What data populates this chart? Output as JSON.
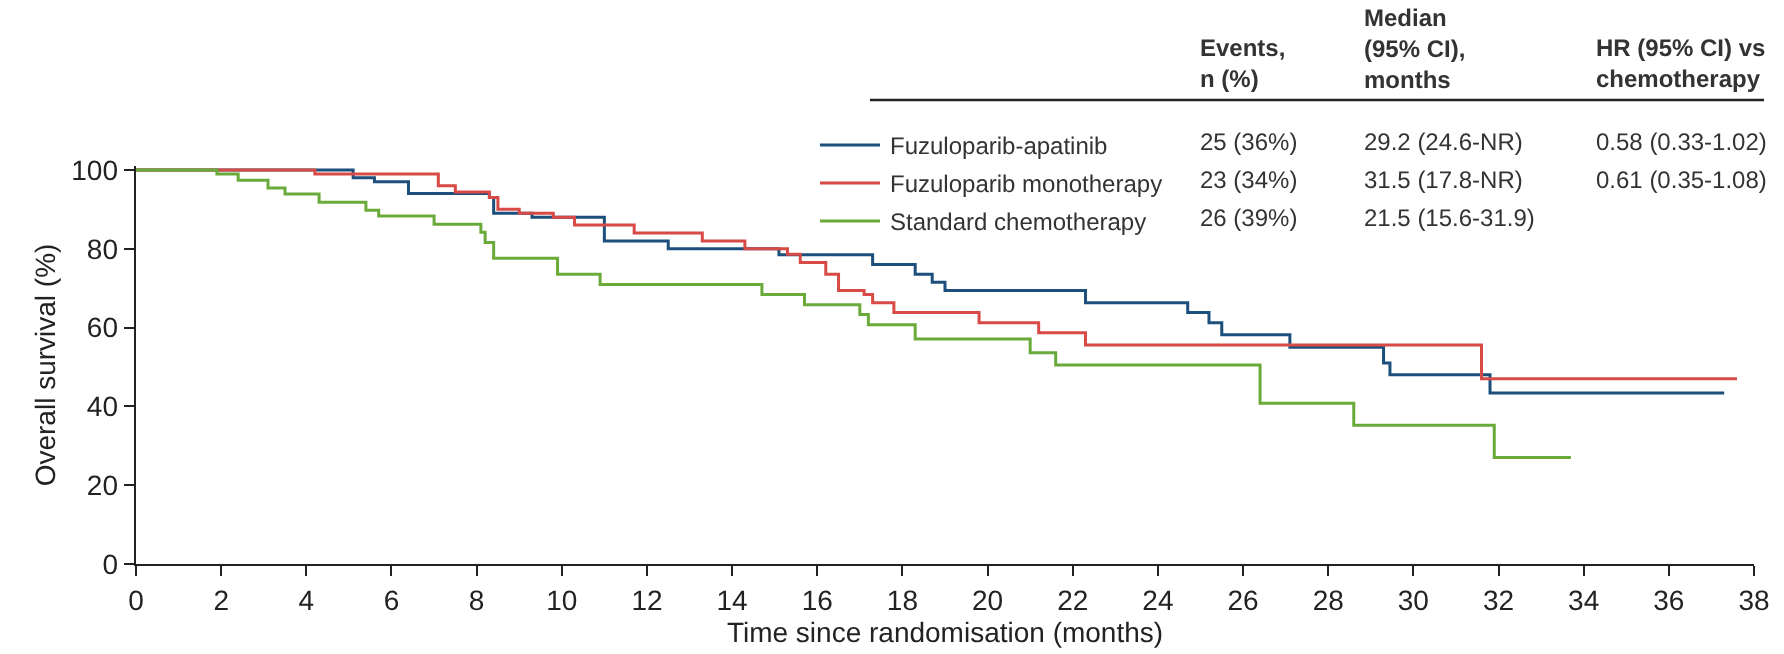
{
  "chart_data": {
    "type": "step",
    "xlabel": "Time since randomisation (months)",
    "ylabel": "Overall survival (%)",
    "xlim": [
      0,
      38
    ],
    "xticks": [
      0,
      2,
      4,
      6,
      8,
      10,
      12,
      14,
      16,
      18,
      20,
      22,
      24,
      26,
      28,
      30,
      32,
      34,
      36,
      38
    ],
    "ylim": [
      0,
      101
    ],
    "yticks": [
      0,
      20,
      40,
      60,
      80,
      100
    ],
    "grid": false,
    "legend": "top right",
    "marker": "none",
    "line_style": "solid",
    "series": [
      {
        "name": "Fuzuloparib-apatinib",
        "color": "#1d4f7c",
        "x": [
          0,
          5.1,
          5.6,
          6.4,
          8.3,
          8.4,
          9.3,
          11.0,
          12.5,
          15.1,
          17.3,
          18.3,
          18.7,
          19.0,
          22.3,
          24.7,
          25.2,
          25.5,
          27.1,
          29.3,
          29.45,
          31.8,
          37.3
        ],
        "values": [
          100,
          98,
          97,
          94,
          93,
          89,
          88,
          82,
          80,
          78.5,
          76,
          73.5,
          71.5,
          69.4,
          66.3,
          63.8,
          61.2,
          58.2,
          55,
          51,
          48,
          43.4,
          43.4
        ]
      },
      {
        "name": "Fuzuloparib monotherapy",
        "color": "#d84a45",
        "x": [
          0,
          4.2,
          7.1,
          7.5,
          8.3,
          8.5,
          9.0,
          9.8,
          10.3,
          11.7,
          13.3,
          14.3,
          15.3,
          15.6,
          16.2,
          16.5,
          17.1,
          17.3,
          17.8,
          19.8,
          21.2,
          22.3,
          31.6,
          37.6
        ],
        "values": [
          100,
          99,
          96,
          94.4,
          93,
          90,
          89,
          88,
          86,
          84,
          82,
          80,
          78.6,
          76.5,
          73.5,
          69.4,
          68.4,
          66.3,
          63.8,
          61.2,
          58.7,
          55.6,
          47,
          47
        ]
      },
      {
        "name": "Standard chemotherapy",
        "color": "#6aaa3a",
        "x": [
          0,
          1.9,
          2.4,
          3.1,
          3.5,
          4.3,
          5.4,
          5.7,
          7.0,
          8.1,
          8.2,
          8.4,
          9.9,
          10.9,
          14.7,
          15.7,
          17.0,
          17.2,
          18.3,
          21.0,
          21.6,
          26.4,
          28.6,
          31.9,
          33.7
        ],
        "values": [
          100,
          99,
          97.4,
          95.4,
          93.9,
          91.8,
          89.8,
          88.3,
          86.2,
          84.2,
          81.6,
          77.6,
          73.5,
          70.9,
          68.4,
          65.8,
          63.3,
          60.7,
          57.1,
          53.6,
          50.5,
          40.8,
          35.2,
          27,
          27
        ]
      }
    ],
    "annotations": [
      "Events,\nn (%)",
      "Median\n(95% CI),\nmonths",
      "HR (95% CI) vs\nchemotherapy",
      "25 (36%)",
      "29.2 (24.6-NR)",
      "0.58 (0.33-1.02)",
      "23 (34%)",
      "31.5 (17.8-NR)",
      "0.61 (0.35-1.08)",
      "26 (39%)",
      "21.5 (15.6-31.9)"
    ]
  }
}
